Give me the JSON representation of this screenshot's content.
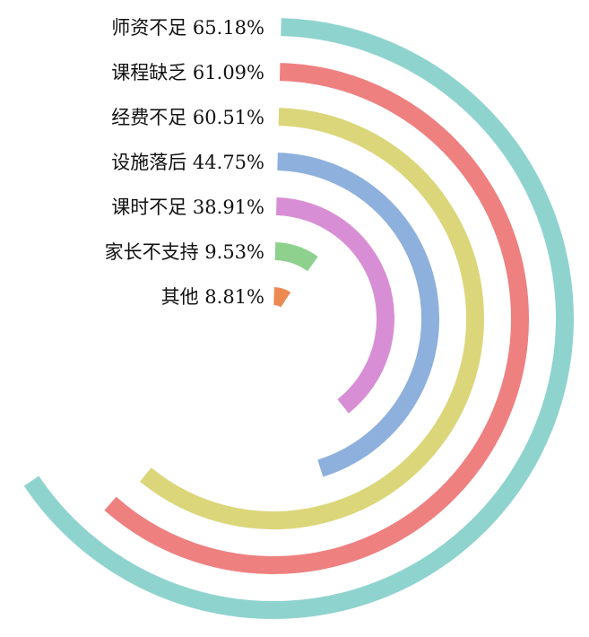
{
  "chart_data": {
    "type": "radial-bar",
    "title": "",
    "full_scale_percent": 100,
    "categories": [
      "师资不足",
      "课程缺乏",
      "经费不足",
      "设施落后",
      "课时不足",
      "家长不支持",
      "其他"
    ],
    "values": [
      65.18,
      61.09,
      60.51,
      44.75,
      38.91,
      9.53,
      8.81
    ],
    "value_labels": [
      "65.18%",
      "61.09%",
      "60.51%",
      "44.75%",
      "38.91%",
      "9.53%",
      "8.81%"
    ],
    "colors": [
      "#8fd3cf",
      "#ee8080",
      "#dcd67a",
      "#8db0dc",
      "#d88ed4",
      "#8ed18e",
      "#ec8a52"
    ],
    "legend": "none",
    "grid": false
  }
}
